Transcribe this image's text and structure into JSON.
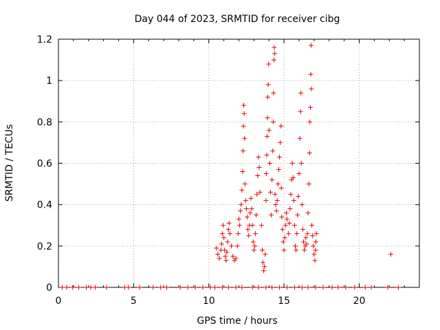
{
  "chart_data": {
    "type": "scatter",
    "title": "Day 044 of 2023, SRMTID for receiver cibg",
    "xlabel": "GPS time / hours",
    "ylabel": "SRMTID / TECUs",
    "xlim": [
      0,
      24
    ],
    "ylim": [
      0,
      1.2
    ],
    "x_ticks": [
      0,
      5,
      10,
      15,
      20
    ],
    "y_ticks": [
      0,
      0.2,
      0.4,
      0.6,
      0.8,
      1,
      1.2
    ],
    "x_tick_labels": [
      "0",
      "5",
      "10",
      "15",
      "20"
    ],
    "y_tick_labels": [
      "0",
      "0.2",
      "0.4",
      "0.6",
      "0.8",
      "1",
      "1.2"
    ],
    "grid": true,
    "marker": "plus",
    "series": [
      {
        "name": "SRMTID",
        "color": "#e00000",
        "points": [
          [
            0.25,
            0
          ],
          [
            0.55,
            0
          ],
          [
            0.95,
            0
          ],
          [
            1.35,
            0
          ],
          [
            1.85,
            0
          ],
          [
            2.15,
            0
          ],
          [
            2.45,
            0
          ],
          [
            3.2,
            0
          ],
          [
            4.4,
            0
          ],
          [
            4.65,
            0
          ],
          [
            5.4,
            0
          ],
          [
            6.3,
            0
          ],
          [
            6.8,
            0
          ],
          [
            7.2,
            0
          ],
          [
            8.1,
            0
          ],
          [
            8.6,
            0
          ],
          [
            9.1,
            0
          ],
          [
            9.6,
            0
          ],
          [
            10.1,
            0
          ],
          [
            10.4,
            0
          ],
          [
            10.9,
            0
          ],
          [
            11.3,
            0
          ],
          [
            11.8,
            0
          ],
          [
            12.2,
            0
          ],
          [
            12.9,
            0
          ],
          [
            13.3,
            0
          ],
          [
            13.8,
            0
          ],
          [
            14.2,
            0
          ],
          [
            14.7,
            0
          ],
          [
            15.2,
            0
          ],
          [
            15.7,
            0
          ],
          [
            16.2,
            0
          ],
          [
            16.6,
            0
          ],
          [
            17.1,
            0
          ],
          [
            17.6,
            0
          ],
          [
            18.2,
            0
          ],
          [
            18.6,
            0
          ],
          [
            19.1,
            0
          ],
          [
            19.7,
            0
          ],
          [
            20.4,
            0
          ],
          [
            20.8,
            0
          ],
          [
            21.9,
            0
          ],
          [
            22.6,
            0
          ],
          [
            10.5,
            0.19
          ],
          [
            10.6,
            0.16
          ],
          [
            10.7,
            0.14
          ],
          [
            10.8,
            0.18
          ],
          [
            10.85,
            0.21
          ],
          [
            10.9,
            0.26
          ],
          [
            10.95,
            0.3
          ],
          [
            11.0,
            0.24
          ],
          [
            11.05,
            0.18
          ],
          [
            11.1,
            0.15
          ],
          [
            11.15,
            0.13
          ],
          [
            11.2,
            0.17
          ],
          [
            11.25,
            0.22
          ],
          [
            11.3,
            0.28
          ],
          [
            11.35,
            0.31
          ],
          [
            11.4,
            0.26
          ],
          [
            11.5,
            0.2
          ],
          [
            11.6,
            0.15
          ],
          [
            11.7,
            0.13
          ],
          [
            11.8,
            0.14
          ],
          [
            11.9,
            0.2
          ],
          [
            11.95,
            0.26
          ],
          [
            12.0,
            0.33
          ],
          [
            12.05,
            0.3
          ],
          [
            12.1,
            0.37
          ],
          [
            12.15,
            0.4
          ],
          [
            12.2,
            0.47
          ],
          [
            12.25,
            0.56
          ],
          [
            12.28,
            0.66
          ],
          [
            12.3,
            0.78
          ],
          [
            12.32,
            0.88
          ],
          [
            12.35,
            0.84
          ],
          [
            12.38,
            0.72
          ],
          [
            12.4,
            0.5
          ],
          [
            12.45,
            0.42
          ],
          [
            12.5,
            0.38
          ],
          [
            12.55,
            0.34
          ],
          [
            12.6,
            0.28
          ],
          [
            12.65,
            0.25
          ],
          [
            12.7,
            0.3
          ],
          [
            12.75,
            0.36
          ],
          [
            12.8,
            0.43
          ],
          [
            12.85,
            0.38
          ],
          [
            12.9,
            0.3
          ],
          [
            12.95,
            0.22
          ],
          [
            13.0,
            0.18
          ],
          [
            13.05,
            0.2
          ],
          [
            13.1,
            0.26
          ],
          [
            13.15,
            0.35
          ],
          [
            13.2,
            0.45
          ],
          [
            13.25,
            0.54
          ],
          [
            13.3,
            0.63
          ],
          [
            13.35,
            0.58
          ],
          [
            13.4,
            0.46
          ],
          [
            13.5,
            0.3
          ],
          [
            13.55,
            0.18
          ],
          [
            13.6,
            0.12
          ],
          [
            13.65,
            0.08
          ],
          [
            13.7,
            0.1
          ],
          [
            13.75,
            0.16
          ],
          [
            13.8,
            0.42
          ],
          [
            13.82,
            0.55
          ],
          [
            13.85,
            0.64
          ],
          [
            13.88,
            0.73
          ],
          [
            13.9,
            0.82
          ],
          [
            13.92,
            0.92
          ],
          [
            13.95,
            0.98
          ],
          [
            13.98,
            1.08
          ],
          [
            14.0,
            0.76
          ],
          [
            14.05,
            0.6
          ],
          [
            14.1,
            0.46
          ],
          [
            14.15,
            0.35
          ],
          [
            14.2,
            0.52
          ],
          [
            14.25,
            0.66
          ],
          [
            14.28,
            0.8
          ],
          [
            14.3,
            0.94
          ],
          [
            14.33,
            1.1
          ],
          [
            14.35,
            1.16
          ],
          [
            14.38,
            1.13
          ],
          [
            14.4,
            0.45
          ],
          [
            14.45,
            0.4
          ],
          [
            14.5,
            0.37
          ],
          [
            14.55,
            0.42
          ],
          [
            14.6,
            0.5
          ],
          [
            14.65,
            0.57
          ],
          [
            14.7,
            0.63
          ],
          [
            14.75,
            0.7
          ],
          [
            14.8,
            0.78
          ],
          [
            14.82,
            0.48
          ],
          [
            14.85,
            0.34
          ],
          [
            14.9,
            0.28
          ],
          [
            14.95,
            0.22
          ],
          [
            15.0,
            0.18
          ],
          [
            15.05,
            0.24
          ],
          [
            15.1,
            0.3
          ],
          [
            15.15,
            0.36
          ],
          [
            15.2,
            0.33
          ],
          [
            15.3,
            0.26
          ],
          [
            15.35,
            0.31
          ],
          [
            15.4,
            0.38
          ],
          [
            15.45,
            0.45
          ],
          [
            15.5,
            0.52
          ],
          [
            15.55,
            0.6
          ],
          [
            15.6,
            0.53
          ],
          [
            15.65,
            0.42
          ],
          [
            15.7,
            0.3
          ],
          [
            15.75,
            0.2
          ],
          [
            15.8,
            0.18
          ],
          [
            15.85,
            0.26
          ],
          [
            15.9,
            0.35
          ],
          [
            15.95,
            0.44
          ],
          [
            16.0,
            0.55
          ],
          [
            16.05,
            0.72
          ],
          [
            16.1,
            0.85
          ],
          [
            16.12,
            0.94
          ],
          [
            16.15,
            0.6
          ],
          [
            16.2,
            0.4
          ],
          [
            16.25,
            0.28
          ],
          [
            16.3,
            0.22
          ],
          [
            16.35,
            0.18
          ],
          [
            16.4,
            0.2
          ],
          [
            16.45,
            0.24
          ],
          [
            16.5,
            0.21
          ],
          [
            16.55,
            0.26
          ],
          [
            16.6,
            0.36
          ],
          [
            16.65,
            0.5
          ],
          [
            16.7,
            0.65
          ],
          [
            16.72,
            0.8
          ],
          [
            16.75,
            0.87
          ],
          [
            16.78,
            1.03
          ],
          [
            16.8,
            1.17
          ],
          [
            16.82,
            0.96
          ],
          [
            16.85,
            0.3
          ],
          [
            16.9,
            0.25
          ],
          [
            16.95,
            0.2
          ],
          [
            17.0,
            0.16
          ],
          [
            17.05,
            0.13
          ],
          [
            17.1,
            0.18
          ],
          [
            17.12,
            0.22
          ],
          [
            17.15,
            0.26
          ],
          [
            22.1,
            0.16
          ]
        ]
      }
    ]
  }
}
